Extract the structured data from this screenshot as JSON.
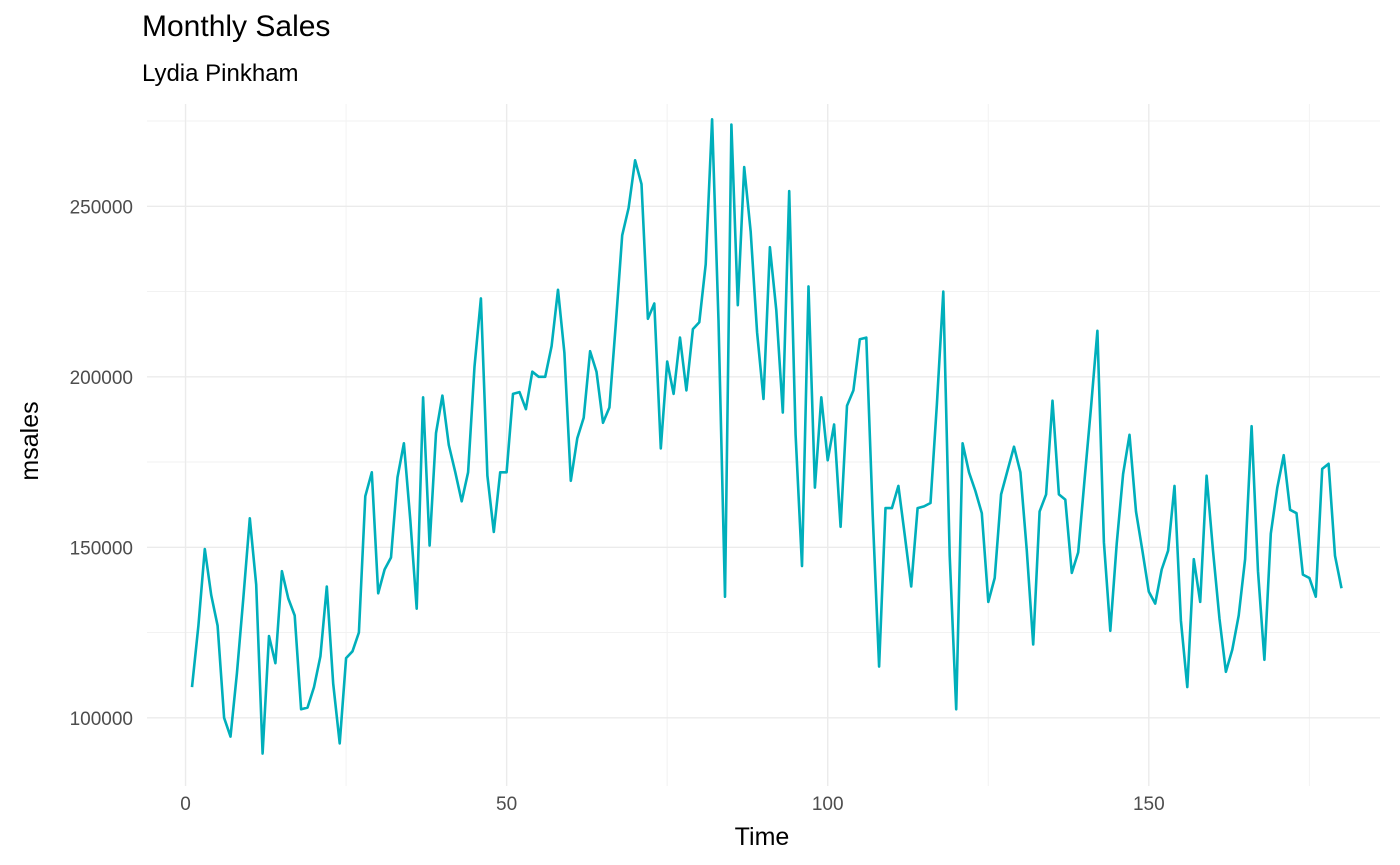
{
  "chart_data": {
    "type": "line",
    "title": "Monthly Sales",
    "subtitle": "Lydia Pinkham",
    "xlabel": "Time",
    "ylabel": "msales",
    "xlim": [
      -6,
      186
    ],
    "ylim": [
      80000,
      280000
    ],
    "x_ticks": [
      0,
      50,
      100,
      150
    ],
    "y_ticks": [
      100000,
      150000,
      200000,
      250000
    ],
    "grid": true,
    "line_color": "#00AFBB",
    "series": [
      {
        "x": [
          1,
          2,
          3,
          4,
          5,
          6,
          7,
          8,
          9,
          10,
          11,
          12,
          13,
          14,
          15,
          16,
          17,
          18,
          19,
          20,
          21,
          22,
          23,
          24,
          25,
          26,
          27,
          28,
          29,
          30,
          31,
          32,
          33,
          34,
          35,
          36,
          37,
          38,
          39,
          40,
          41,
          42,
          43,
          44,
          45,
          46,
          47,
          48,
          49,
          50,
          51,
          52,
          53,
          54,
          55,
          56,
          57,
          58,
          59,
          60,
          61,
          62,
          63,
          64,
          65,
          66,
          67,
          68,
          69,
          70,
          71,
          72,
          73,
          74,
          75,
          76,
          77,
          78,
          79,
          80,
          81,
          82,
          83,
          84,
          85,
          86,
          87,
          88,
          89,
          90,
          91,
          92,
          93,
          94,
          95,
          96,
          97,
          98,
          99,
          100,
          101,
          102,
          103,
          104,
          105,
          106,
          107,
          108,
          109,
          110,
          111,
          112,
          113,
          114,
          115,
          116,
          117,
          118,
          119,
          120,
          121,
          122,
          123,
          124,
          125,
          126,
          127,
          128,
          129,
          130,
          131,
          132,
          133,
          134,
          135,
          136,
          137,
          138,
          139,
          140,
          141,
          142,
          143,
          144,
          145,
          146,
          147,
          148,
          149,
          150,
          151,
          152,
          153,
          154,
          155,
          156,
          157,
          158,
          159,
          160,
          161,
          162,
          163,
          164,
          165,
          166,
          167,
          168,
          169,
          170,
          171,
          172,
          173,
          174,
          175,
          176,
          177,
          178,
          179,
          180
        ],
        "y": [
          109000,
          127000,
          149500,
          136000,
          127000,
          100000,
          94500,
          113000,
          135000,
          158500,
          139000,
          89500,
          124000,
          116000,
          143000,
          135000,
          130000,
          102500,
          103000,
          109000,
          118000,
          138500,
          110000,
          92500,
          117500,
          119500,
          125000,
          165000,
          172000,
          136500,
          143500,
          147000,
          170500,
          180500,
          158000,
          132000,
          194000,
          150500,
          183500,
          194500,
          180000,
          172000,
          163500,
          172000,
          203000,
          223000,
          171000,
          154500,
          172000,
          172000,
          195000,
          195500,
          190500,
          201500,
          200000,
          200000,
          209000,
          225500,
          207000,
          169500,
          182000,
          188000,
          207500,
          201500,
          186500,
          191000,
          215500,
          241500,
          249500,
          263500,
          256500,
          217000,
          221500,
          179000,
          204500,
          195000,
          211500,
          196000,
          214000,
          216000,
          233000,
          275500,
          216500,
          135500,
          274000,
          221000,
          261500,
          242500,
          213000,
          193500,
          238000,
          219500,
          189500,
          254500,
          183000,
          144500,
          226500,
          167500,
          194000,
          175500,
          186000,
          156000,
          191500,
          196000,
          211000,
          211500,
          159500,
          115000,
          161500,
          161500,
          168000,
          153500,
          138500,
          161500,
          162000,
          163000,
          192000,
          225000,
          147500,
          102500,
          180500,
          172000,
          166500,
          160000,
          134000,
          141000,
          165500,
          172500,
          179500,
          172000,
          149000,
          121500,
          160500,
          165500,
          193000,
          165500,
          164000,
          142500,
          148500,
          170000,
          191000,
          213500,
          151500,
          125500,
          151000,
          171500,
          183000,
          160500,
          149000,
          137000,
          133500,
          143500,
          149000,
          168000,
          128500,
          109000,
          146500,
          134000,
          171000,
          149000,
          129000,
          113500,
          120000,
          130000,
          146500,
          185500,
          143000,
          117000,
          154000,
          167500,
          177000,
          161000,
          160000,
          142000,
          141000,
          135500,
          173000,
          174500,
          147500,
          138000
        ]
      }
    ]
  }
}
